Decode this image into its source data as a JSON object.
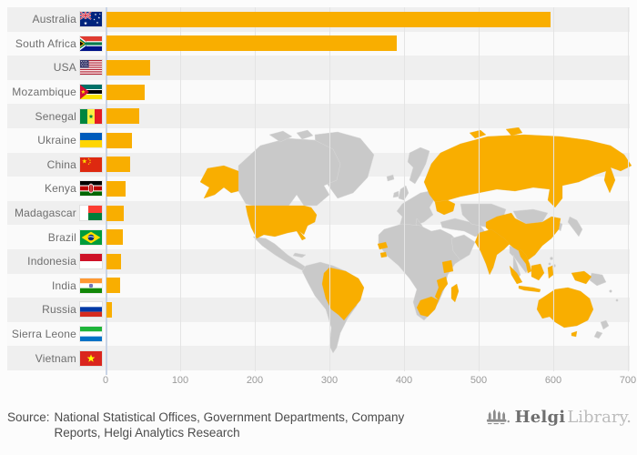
{
  "theme": {
    "bar_color": "#F9AE00",
    "map_highlight_color": "#F9AE00",
    "map_land_color": "#C9C9C9",
    "stripe_color": "#EFEFEF",
    "alt_row_color": "#FAFAFA",
    "gridline_color": "#E4E4E4",
    "zero_axis_color": "#C9D4E6",
    "background": "#FCFCFC"
  },
  "chart_data": {
    "type": "bar",
    "orientation": "horizontal",
    "title": "",
    "xlabel": "",
    "ylabel": "",
    "xlim": [
      0,
      700
    ],
    "x_ticks": [
      0,
      100,
      200,
      300,
      400,
      500,
      600,
      700
    ],
    "grid": true,
    "legend": false,
    "background": "world map with ranked countries highlighted in orange",
    "categories": [
      "Australia",
      "South Africa",
      "USA",
      "Mozambique",
      "Senegal",
      "Ukraine",
      "China",
      "Kenya",
      "Madagascar",
      "Brazil",
      "Indonesia",
      "India",
      "Russia",
      "Sierra Leone",
      "Vietnam"
    ],
    "values": [
      595,
      389,
      59,
      51,
      44,
      34,
      32,
      25,
      23,
      22,
      19,
      18,
      7,
      0,
      0
    ],
    "flag_icons": [
      "australia-flag",
      "south-africa-flag",
      "usa-flag",
      "mozambique-flag",
      "senegal-flag",
      "ukraine-flag",
      "china-flag",
      "kenya-flag",
      "madagascar-flag",
      "brazil-flag",
      "indonesia-flag",
      "india-flag",
      "russia-flag",
      "sierra-leone-flag",
      "vietnam-flag"
    ]
  },
  "footer": {
    "source_prefix": "Source:",
    "source_text": "National Statistical Offices, Government Departments, Company Reports, Helgi Analytics Research"
  },
  "logo": {
    "name_primary": "Helgi",
    "name_secondary": "Library."
  }
}
